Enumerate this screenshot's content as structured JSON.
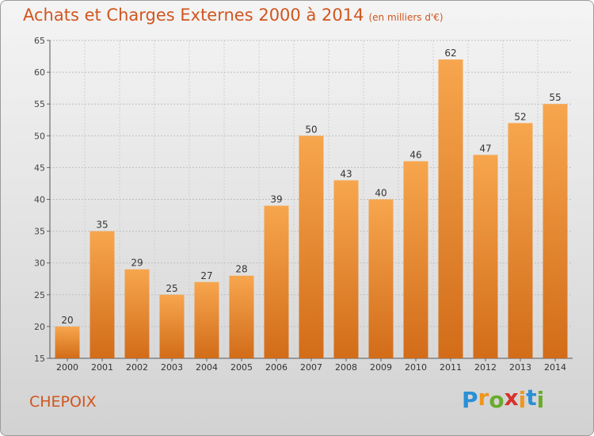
{
  "title": "Achats et Charges Externes 2000 à 2014",
  "subtitle": "(en milliers d'€)",
  "commune": "CHEPOIX",
  "logo": {
    "letters": [
      "P",
      "r",
      "o",
      "x",
      "i",
      "t",
      "i"
    ],
    "colors": [
      "#2a8fd6",
      "#f0961c",
      "#6aab2b",
      "#d6322a",
      "#f0961c",
      "#2a8fd6",
      "#6aab2b"
    ]
  },
  "colors": {
    "bar": "#f29a3e",
    "bar_dark": "#d06a18",
    "accent": "#d0561f"
  },
  "chart_data": {
    "type": "bar",
    "title": "Achats et Charges Externes 2000 à 2014",
    "subtitle": "(en milliers d'€)",
    "categories": [
      "2000",
      "2001",
      "2002",
      "2003",
      "2004",
      "2005",
      "2006",
      "2007",
      "2008",
      "2009",
      "2010",
      "2011",
      "2012",
      "2013",
      "2014"
    ],
    "values": [
      20,
      35,
      29,
      25,
      27,
      28,
      39,
      50,
      43,
      40,
      46,
      62,
      47,
      52,
      55
    ],
    "ylim": [
      15,
      65
    ],
    "yticks": [
      15,
      20,
      25,
      30,
      35,
      40,
      45,
      50,
      55,
      60,
      65
    ],
    "grid": true,
    "legend": "none"
  }
}
